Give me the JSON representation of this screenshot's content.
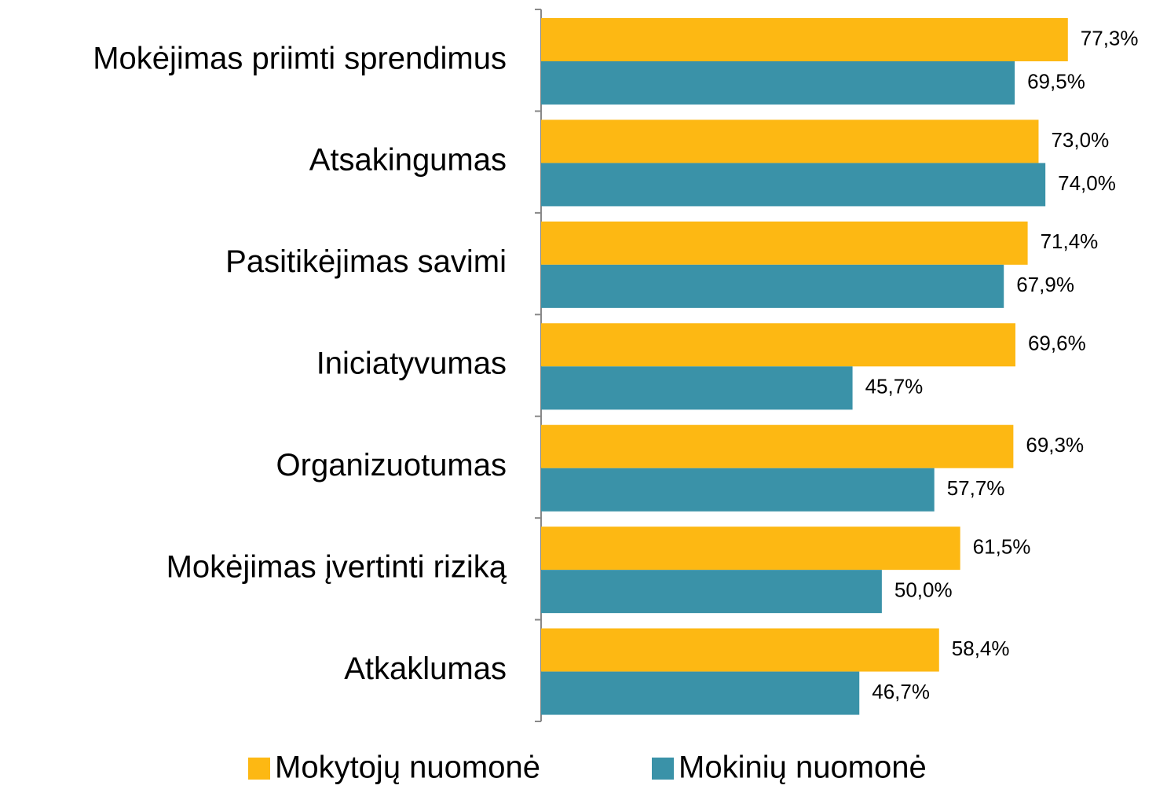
{
  "chart_data": {
    "type": "hbar",
    "categories": [
      "Mokėjimas priimti sprendimus",
      "Atsakingumas",
      "Pasitikėjimas savimi",
      "Iniciatyvumas",
      "Organizuotumas",
      "Mokėjimas įvertinti riziką",
      "Atkaklumas"
    ],
    "series": [
      {
        "name": "Mokytojų nuomonė",
        "color": "#FDB813",
        "values": [
          77.3,
          73.0,
          71.4,
          69.6,
          69.3,
          61.5,
          58.4
        ],
        "value_labels": [
          "77,3%",
          "73,0%",
          "71,4%",
          "69,6%",
          "69,3%",
          "61,5%",
          "58,4%"
        ]
      },
      {
        "name": "Mokinių nuomonė",
        "color": "#3A92A8",
        "values": [
          69.5,
          74.0,
          67.9,
          45.7,
          57.7,
          50.0,
          46.7
        ],
        "value_labels": [
          "69,5%",
          "74,0%",
          "67,9%",
          "45,7%",
          "57,7%",
          "50,0%",
          "46,7%"
        ]
      }
    ],
    "xlim": [
      0,
      90
    ],
    "legend": "bottom"
  }
}
